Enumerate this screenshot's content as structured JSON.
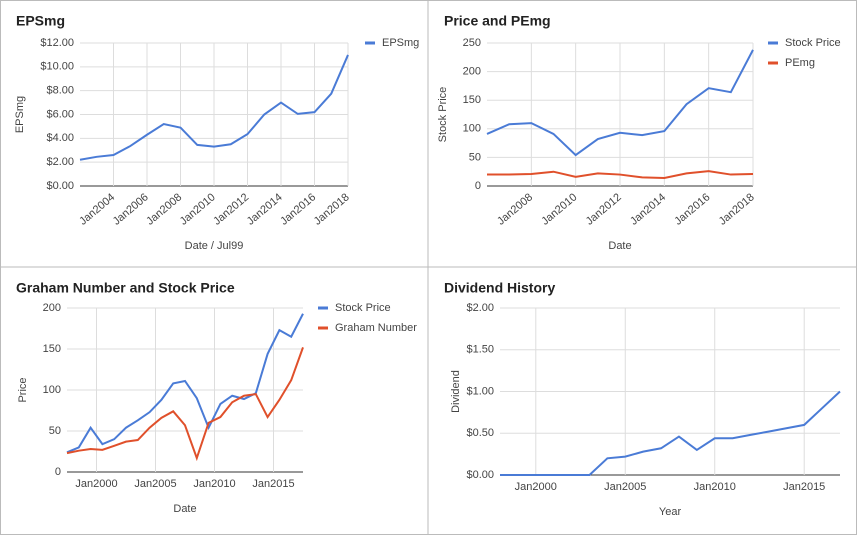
{
  "chart_data": [
    {
      "type": "line",
      "title": "EPSmg",
      "x_label": "Date / Jul99",
      "y_label": "EPSmg",
      "legend": "right",
      "grid": true,
      "x": [
        2002,
        2003,
        2004,
        2005,
        2006,
        2007,
        2008,
        2009,
        2010,
        2011,
        2012,
        2013,
        2014,
        2015,
        2016,
        2017,
        2018
      ],
      "series": [
        {
          "name": "EPSmg",
          "color": "#4a7bd6",
          "values": [
            2.2,
            2.45,
            2.6,
            3.35,
            4.3,
            5.2,
            4.9,
            3.45,
            3.3,
            3.5,
            4.35,
            6.0,
            7.0,
            6.05,
            6.2,
            7.75,
            11.0
          ]
        }
      ],
      "xlim": [
        2002,
        2018
      ],
      "xticks": [
        {
          "value": 2004,
          "label": "Jan2004"
        },
        {
          "value": 2006,
          "label": "Jan2006"
        },
        {
          "value": 2008,
          "label": "Jan2008"
        },
        {
          "value": 2010,
          "label": "Jan2010"
        },
        {
          "value": 2012,
          "label": "Jan2012"
        },
        {
          "value": 2014,
          "label": "Jan2014"
        },
        {
          "value": 2016,
          "label": "Jan2016"
        },
        {
          "value": 2018,
          "label": "Jan2018"
        }
      ],
      "ylim": [
        0,
        12
      ],
      "yticks": [
        {
          "value": 0,
          "label": "$0.00"
        },
        {
          "value": 2,
          "label": "$2.00"
        },
        {
          "value": 4,
          "label": "$4.00"
        },
        {
          "value": 6,
          "label": "$6.00"
        },
        {
          "value": 8,
          "label": "$8.00"
        },
        {
          "value": 10,
          "label": "$10.00"
        },
        {
          "value": 12,
          "label": "$12.00"
        }
      ]
    },
    {
      "type": "line",
      "title": "Price and PEmg",
      "x_label": "Date",
      "y_label": "Stock Price",
      "legend": "right",
      "grid": true,
      "x": [
        2006,
        2007,
        2008,
        2009,
        2010,
        2011,
        2012,
        2013,
        2014,
        2015,
        2016,
        2017,
        2018
      ],
      "series": [
        {
          "name": "Stock Price",
          "color": "#4a7bd6",
          "values": [
            91,
            108,
            110,
            91,
            54,
            82,
            93,
            89,
            96,
            143,
            171,
            164,
            238
          ]
        },
        {
          "name": "PEmg",
          "color": "#e0502b",
          "values": [
            20,
            20,
            21,
            25,
            16,
            22,
            20,
            15,
            14,
            22,
            26,
            20,
            21
          ]
        }
      ],
      "xlim": [
        2006,
        2018
      ],
      "xticks": [
        {
          "value": 2008,
          "label": "Jan2008"
        },
        {
          "value": 2010,
          "label": "Jan2010"
        },
        {
          "value": 2012,
          "label": "Jan2012"
        },
        {
          "value": 2014,
          "label": "Jan2014"
        },
        {
          "value": 2016,
          "label": "Jan2016"
        },
        {
          "value": 2018,
          "label": "Jan2018"
        }
      ],
      "ylim": [
        0,
        250
      ],
      "yticks": [
        0,
        50,
        100,
        150,
        200,
        250
      ]
    },
    {
      "type": "line",
      "title": "Graham Number and Stock Price",
      "x_label": "Date",
      "y_label": "Price",
      "legend": "right",
      "grid": true,
      "x": [
        1997.5,
        1998.5,
        1999.5,
        2000.5,
        2001.5,
        2002.5,
        2003.5,
        2004.5,
        2005.5,
        2006.5,
        2007.5,
        2008.5,
        2009.5,
        2010.5,
        2011.5,
        2012.5,
        2013.5,
        2014.5,
        2015.5,
        2016.5,
        2017.5
      ],
      "series": [
        {
          "name": "Stock Price",
          "color": "#4a7bd6",
          "values": [
            24,
            30,
            54,
            34,
            40,
            54,
            63,
            73,
            88,
            108,
            111,
            90,
            54,
            83,
            93,
            89,
            96,
            144,
            173,
            165,
            193
          ]
        },
        {
          "name": "Graham Number",
          "color": "#e0502b",
          "values": [
            23,
            26,
            28,
            27,
            32,
            37,
            39,
            54,
            66,
            74,
            57,
            17,
            60,
            67,
            85,
            93,
            95,
            67,
            88,
            112,
            152
          ]
        }
      ],
      "xlim": [
        1997.5,
        2017.5
      ],
      "xticks": [
        {
          "value": 2000,
          "label": "Jan2000"
        },
        {
          "value": 2005,
          "label": "Jan2005"
        },
        {
          "value": 2010,
          "label": "Jan2010"
        },
        {
          "value": 2015,
          "label": "Jan2015"
        }
      ],
      "ylim": [
        0,
        200
      ],
      "yticks": [
        0,
        50,
        100,
        150,
        200
      ]
    },
    {
      "type": "line",
      "title": "Dividend History",
      "x_label": "Year",
      "y_label": "Dividend",
      "grid": true,
      "x": [
        1998,
        1999,
        2000,
        2001,
        2002,
        2003,
        2004,
        2005,
        2006,
        2007,
        2008,
        2009,
        2010,
        2011,
        2012,
        2013,
        2014,
        2015,
        2016,
        2017
      ],
      "color": "#4a7bd6",
      "values": [
        0,
        0,
        0,
        0,
        0,
        0,
        0.2,
        0.22,
        0.28,
        0.32,
        0.46,
        0.3,
        0.44,
        0.44,
        0.48,
        0.52,
        0.56,
        0.6,
        0.8,
        1.0
      ],
      "xlim": [
        1998,
        2017
      ],
      "xticks": [
        {
          "value": 2000,
          "label": "Jan2000"
        },
        {
          "value": 2005,
          "label": "Jan2005"
        },
        {
          "value": 2010,
          "label": "Jan2010"
        },
        {
          "value": 2015,
          "label": "Jan2015"
        }
      ],
      "ylim": [
        0,
        2
      ],
      "yticks": [
        {
          "value": 0,
          "label": "$0.00"
        },
        {
          "value": 0.5,
          "label": "$0.50"
        },
        {
          "value": 1,
          "label": "$1.00"
        },
        {
          "value": 1.5,
          "label": "$1.50"
        },
        {
          "value": 2,
          "label": "$2.00"
        }
      ]
    }
  ]
}
